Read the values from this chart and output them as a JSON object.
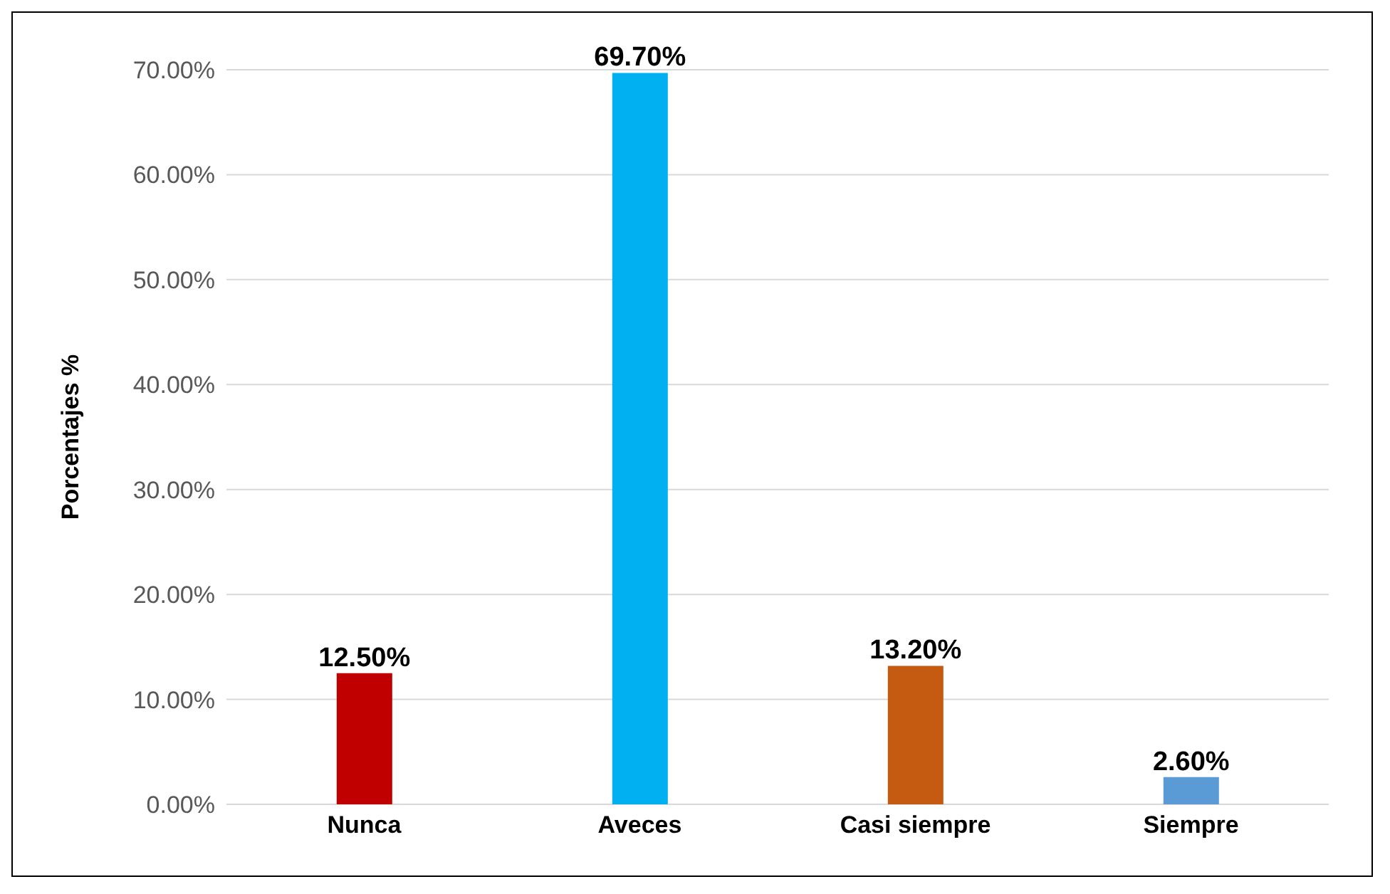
{
  "chart_data": {
    "type": "bar",
    "ylabel": "Porcentajes %",
    "categories": [
      "Nunca",
      "Aveces",
      "Casi siempre",
      "Siempre"
    ],
    "values": [
      12.5,
      69.7,
      13.2,
      2.6
    ],
    "colors": [
      "#c00000",
      "#00b0f0",
      "#c55a11",
      "#5b9bd5"
    ],
    "value_labels": [
      "12.50%",
      "69.70%",
      "13.20%",
      "2.60%"
    ],
    "ylim": [
      0,
      70
    ],
    "yticks": [
      {
        "value": 0,
        "label": "0.00%"
      },
      {
        "value": 10,
        "label": "10.00%"
      },
      {
        "value": 20,
        "label": "20.00%"
      },
      {
        "value": 30,
        "label": "30.00%"
      },
      {
        "value": 40,
        "label": "40.00%"
      },
      {
        "value": 50,
        "label": "50.00%"
      },
      {
        "value": 60,
        "label": "60.00%"
      },
      {
        "value": 70,
        "label": "70.00%"
      }
    ],
    "grid": "y"
  }
}
